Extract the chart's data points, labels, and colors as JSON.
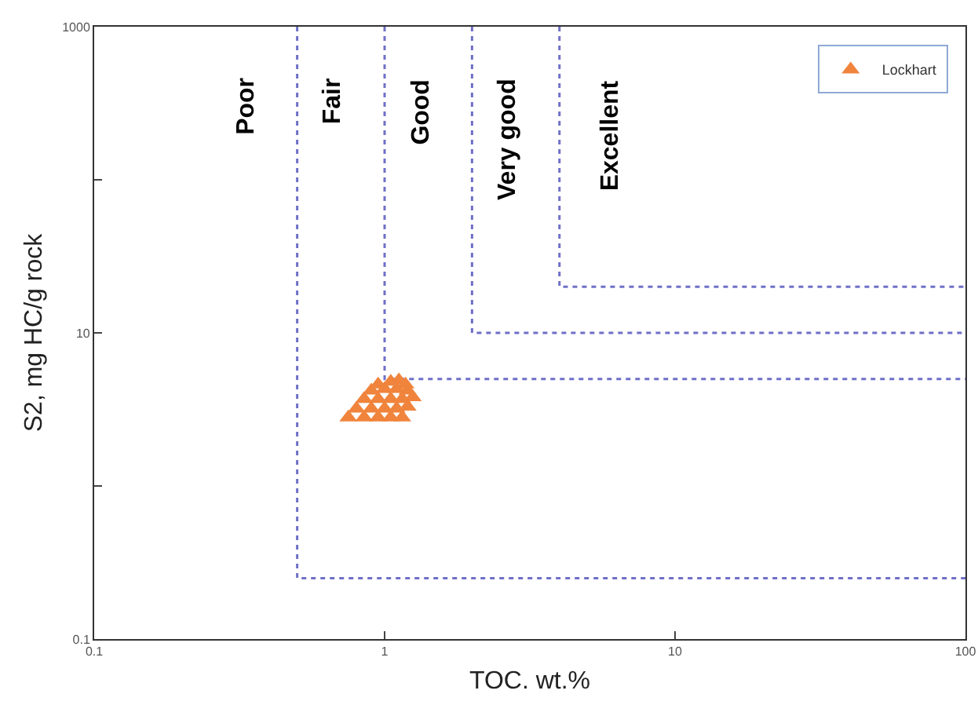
{
  "chart_data": {
    "type": "scatter",
    "xlabel": "TOC. wt.%",
    "ylabel": "S2, mg HC/g rock",
    "log": "xy",
    "grid": false,
    "legend": "top right",
    "marker": "triangle",
    "xlim": [
      0.1,
      100
    ],
    "xticks": [
      0.1,
      1,
      10,
      100
    ],
    "ylim": [
      0.1,
      1000
    ],
    "yticks": [
      0.1,
      {
        "value": 1,
        "label": null
      },
      10,
      {
        "value": 100,
        "label": null
      },
      1000
    ],
    "annotations": [
      "Poor",
      "Fair",
      "Good",
      "Very good",
      "Excellent"
    ],
    "series": [
      {
        "type": "line",
        "line_style": "dotted",
        "marker": "none",
        "color": "#6f6fc8",
        "x": [
          0.5,
          0.5,
          100
        ],
        "values": [
          1000,
          0.25,
          0.25
        ]
      },
      {
        "type": "line",
        "line_style": "dotted",
        "marker": "none",
        "color": "#6f6fc8",
        "x": [
          1,
          1,
          100
        ],
        "values": [
          1000,
          5,
          5
        ]
      },
      {
        "type": "line",
        "line_style": "dotted",
        "marker": "none",
        "color": "#6f6fc8",
        "x": [
          2,
          2,
          100
        ],
        "values": [
          1000,
          10,
          10
        ]
      },
      {
        "type": "line",
        "line_style": "dotted",
        "marker": "none",
        "color": "#6f6fc8",
        "x": [
          4,
          4,
          100
        ],
        "values": [
          1000,
          20,
          20
        ]
      },
      {
        "name": "Lockhart",
        "color": "#f0843c",
        "x": [
          0.75,
          0.85,
          0.95,
          1.05,
          1.15,
          0.8,
          0.9,
          1.0,
          1.1,
          1.2,
          0.85,
          0.95,
          1.05,
          1.15,
          1.25,
          0.9,
          1.0,
          1.1,
          1.2,
          0.95,
          1.05,
          1.12,
          1.18
        ],
        "values": [
          2.8,
          2.8,
          2.8,
          2.8,
          2.8,
          3.2,
          3.2,
          3.2,
          3.2,
          3.3,
          3.7,
          3.7,
          3.7,
          3.7,
          3.8,
          4.2,
          4.3,
          4.3,
          4.2,
          4.6,
          4.8,
          4.9,
          4.6
        ]
      }
    ]
  }
}
